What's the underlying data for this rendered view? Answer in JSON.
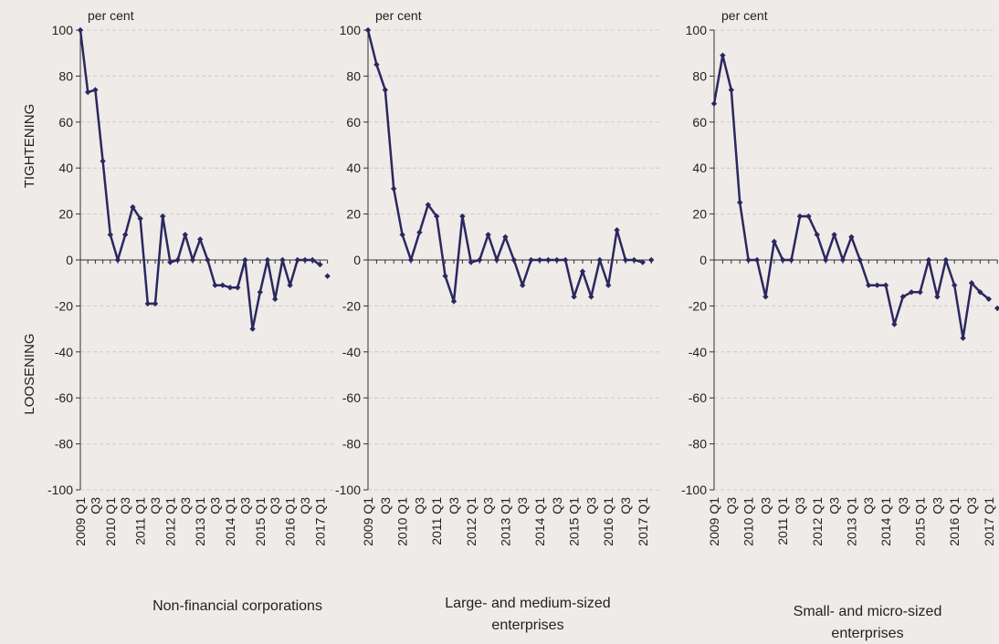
{
  "y_label_top": "TIGHTENING",
  "y_label_bottom": "LOOSENING",
  "chart_data": [
    {
      "type": "line",
      "title": "Non-financial corporations",
      "unit": "per cent",
      "categories": [
        "2009 Q1",
        null,
        "Q3",
        null,
        "2010 Q1",
        null,
        "Q3",
        null,
        "2011 Q1",
        null,
        "Q3",
        null,
        "2012 Q1",
        null,
        "Q3",
        null,
        "2013 Q1",
        null,
        "Q3",
        null,
        "2014 Q1",
        null,
        "Q3",
        null,
        "2015 Q1",
        null,
        "Q3",
        null,
        "2016 Q1",
        null,
        "Q3",
        null,
        "2017 Q1",
        null
      ],
      "series": [
        {
          "color": "#2a285f",
          "line": true,
          "values": [
            100,
            73,
            74,
            43,
            11,
            0,
            11,
            23,
            18,
            -19,
            -19,
            19,
            -1,
            0,
            11,
            0,
            9,
            0,
            -11,
            -11,
            -12,
            -12,
            0,
            -30,
            -14,
            0,
            -17,
            0,
            -11,
            0,
            0,
            0,
            -2,
            null
          ]
        },
        {
          "color": "#2a285f",
          "line": false,
          "values": [
            null,
            null,
            null,
            null,
            null,
            null,
            null,
            null,
            null,
            null,
            null,
            null,
            null,
            null,
            null,
            null,
            null,
            null,
            null,
            null,
            null,
            null,
            null,
            null,
            null,
            null,
            null,
            null,
            null,
            null,
            null,
            null,
            null,
            -7
          ]
        }
      ],
      "ylim": [
        -100,
        100
      ],
      "yticks": [
        -100,
        -80,
        -60,
        -40,
        -20,
        0,
        20,
        40,
        60,
        80,
        100
      ],
      "grid": true
    },
    {
      "type": "line",
      "title": "Large- and medium-sized enterprises",
      "unit": "per cent",
      "categories": [
        "2009 Q1",
        null,
        "Q3",
        null,
        "2010 Q1",
        null,
        "Q3",
        null,
        "2011 Q1",
        null,
        "Q3",
        null,
        "2012 Q1",
        null,
        "Q3",
        null,
        "2013 Q1",
        null,
        "Q3",
        null,
        "2014 Q1",
        null,
        "Q3",
        null,
        "2015 Q1",
        null,
        "Q3",
        null,
        "2016 Q1",
        null,
        "Q3",
        null,
        "2017 Q1",
        null
      ],
      "series": [
        {
          "color": "#2a285f",
          "line": true,
          "values": [
            100,
            85,
            74,
            31,
            11,
            0,
            12,
            24,
            19,
            -7,
            -18,
            19,
            -1,
            0,
            11,
            0,
            10,
            0,
            -11,
            0,
            0,
            0,
            0,
            0,
            -16,
            -5,
            -16,
            0,
            -11,
            13,
            0,
            0,
            -1,
            null
          ]
        },
        {
          "color": "#2a285f",
          "line": false,
          "values": [
            null,
            null,
            null,
            null,
            null,
            null,
            null,
            null,
            null,
            null,
            null,
            null,
            null,
            null,
            null,
            null,
            null,
            null,
            null,
            null,
            null,
            null,
            null,
            null,
            null,
            null,
            null,
            null,
            null,
            null,
            null,
            null,
            null,
            0
          ]
        }
      ],
      "ylim": [
        -100,
        100
      ],
      "yticks": [
        -100,
        -80,
        -60,
        -40,
        -20,
        0,
        20,
        40,
        60,
        80,
        100
      ],
      "grid": true
    },
    {
      "type": "line",
      "title": "Small- and micro-sized enterprises",
      "unit": "per cent",
      "categories": [
        "2009 Q1",
        null,
        "Q3",
        null,
        "2010 Q1",
        null,
        "Q3",
        null,
        "2011 Q1",
        null,
        "Q3",
        null,
        "2012 Q1",
        null,
        "Q3",
        null,
        "2013 Q1",
        null,
        "Q3",
        null,
        "2014 Q1",
        null,
        "Q3",
        null,
        "2015 Q1",
        null,
        "Q3",
        null,
        "2016 Q1",
        null,
        "Q3",
        null,
        "2017 Q1",
        null
      ],
      "series": [
        {
          "color": "#2a285f",
          "line": true,
          "values": [
            68,
            89,
            74,
            25,
            0,
            0,
            -16,
            8,
            0,
            0,
            19,
            19,
            11,
            0,
            11,
            0,
            10,
            0,
            -11,
            -11,
            -11,
            -28,
            -16,
            -14,
            -14,
            0,
            -16,
            0,
            -11,
            -34,
            -10,
            -14,
            -17,
            null
          ]
        },
        {
          "color": "#2a285f",
          "line": false,
          "values": [
            null,
            null,
            null,
            null,
            null,
            null,
            null,
            null,
            null,
            null,
            null,
            null,
            null,
            null,
            null,
            null,
            null,
            null,
            null,
            null,
            null,
            null,
            null,
            null,
            null,
            null,
            null,
            null,
            null,
            null,
            null,
            null,
            null,
            -21
          ]
        }
      ],
      "ylim": [
        -100,
        100
      ],
      "yticks": [
        -100,
        -80,
        -60,
        -40,
        -20,
        0,
        20,
        40,
        60,
        80,
        100
      ],
      "grid": true
    }
  ]
}
